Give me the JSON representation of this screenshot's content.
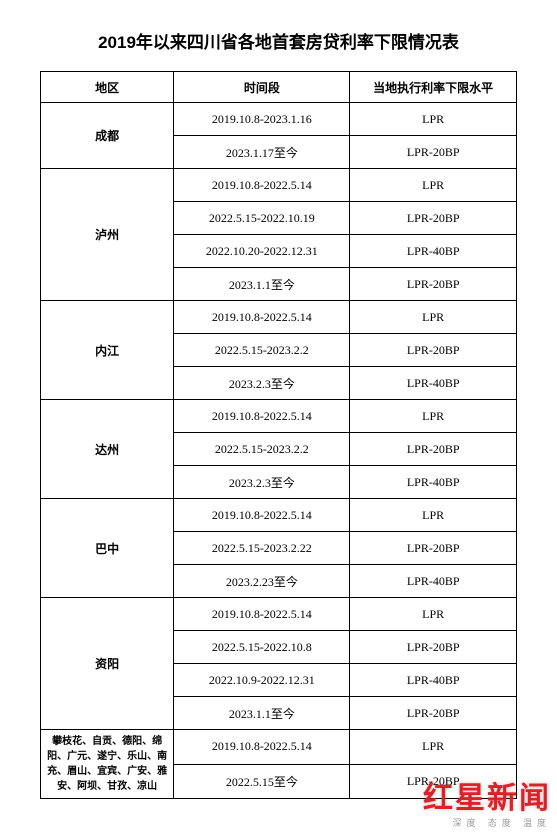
{
  "title": "2019年以来四川省各地首套房贷利率下限情况表",
  "headers": {
    "region": "地区",
    "period": "时间段",
    "rate": "当地执行利率下限水平"
  },
  "regions": [
    {
      "name": "成都",
      "rows": [
        {
          "period": "2019.10.8-2023.1.16",
          "rate": "LPR"
        },
        {
          "period": "2023.1.17至今",
          "rate": "LPR-20BP"
        }
      ]
    },
    {
      "name": "泸州",
      "rows": [
        {
          "period": "2019.10.8-2022.5.14",
          "rate": "LPR"
        },
        {
          "period": "2022.5.15-2022.10.19",
          "rate": "LPR-20BP"
        },
        {
          "period": "2022.10.20-2022.12.31",
          "rate": "LPR-40BP"
        },
        {
          "period": "2023.1.1至今",
          "rate": "LPR-20BP"
        }
      ]
    },
    {
      "name": "内江",
      "rows": [
        {
          "period": "2019.10.8-2022.5.14",
          "rate": "LPR"
        },
        {
          "period": "2022.5.15-2023.2.2",
          "rate": "LPR-20BP"
        },
        {
          "period": "2023.2.3至今",
          "rate": "LPR-40BP"
        }
      ]
    },
    {
      "name": "达州",
      "rows": [
        {
          "period": "2019.10.8-2022.5.14",
          "rate": "LPR"
        },
        {
          "period": "2022.5.15-2023.2.2",
          "rate": "LPR-20BP"
        },
        {
          "period": "2023.2.3至今",
          "rate": "LPR-40BP"
        }
      ]
    },
    {
      "name": "巴中",
      "rows": [
        {
          "period": "2019.10.8-2022.5.14",
          "rate": "LPR"
        },
        {
          "period": "2022.5.15-2023.2.22",
          "rate": "LPR-20BP"
        },
        {
          "period": "2023.2.23至今",
          "rate": "LPR-40BP"
        }
      ]
    },
    {
      "name": "资阳",
      "rows": [
        {
          "period": "2019.10.8-2022.5.14",
          "rate": "LPR"
        },
        {
          "period": "2022.5.15-2022.10.8",
          "rate": "LPR-20BP"
        },
        {
          "period": "2022.10.9-2022.12.31",
          "rate": "LPR-40BP"
        },
        {
          "period": "2023.1.1至今",
          "rate": "LPR-20BP"
        }
      ]
    },
    {
      "name": "攀枝花、自贡、德阳、绵阳、广元、遂宁、乐山、南充、眉山、宜宾、广安、雅安、阿坝、甘孜、凉山",
      "multi": true,
      "rows": [
        {
          "period": "2019.10.8-2022.5.14",
          "rate": "LPR"
        },
        {
          "period": "2022.5.15至今",
          "rate": "LPR-20BP"
        }
      ]
    }
  ],
  "watermark": {
    "big": "红星新闻",
    "small": "深度 态度 温度",
    "color": "#d8232a"
  }
}
